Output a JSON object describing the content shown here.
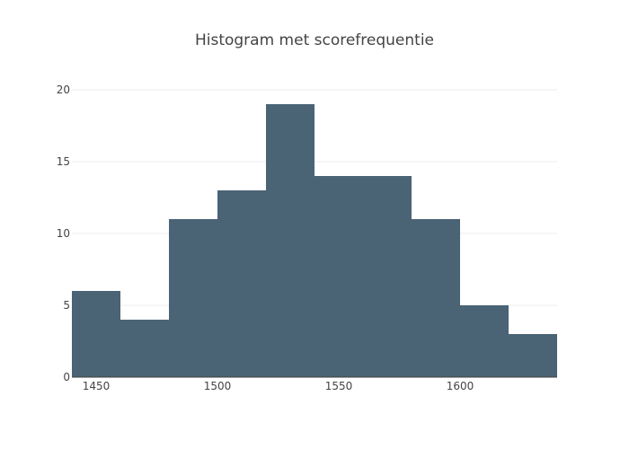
{
  "chart_data": {
    "type": "bar",
    "title": "Histogram met scorefrequentie",
    "xlabel": "",
    "ylabel": "",
    "bins": [
      {
        "start": 1440,
        "end": 1460,
        "count": 6
      },
      {
        "start": 1460,
        "end": 1480,
        "count": 4
      },
      {
        "start": 1480,
        "end": 1500,
        "count": 11
      },
      {
        "start": 1500,
        "end": 1520,
        "count": 13
      },
      {
        "start": 1520,
        "end": 1540,
        "count": 19
      },
      {
        "start": 1540,
        "end": 1560,
        "count": 14
      },
      {
        "start": 1560,
        "end": 1580,
        "count": 14
      },
      {
        "start": 1580,
        "end": 1600,
        "count": 11
      },
      {
        "start": 1600,
        "end": 1620,
        "count": 5
      },
      {
        "start": 1620,
        "end": 1640,
        "count": 3
      }
    ],
    "xlim": [
      1440,
      1640
    ],
    "ylim": [
      0,
      20
    ],
    "x_ticks": [
      1450,
      1500,
      1550,
      1600
    ],
    "y_ticks": [
      0,
      5,
      10,
      15,
      20
    ],
    "grid": true,
    "bar_color": "#4a6375"
  }
}
